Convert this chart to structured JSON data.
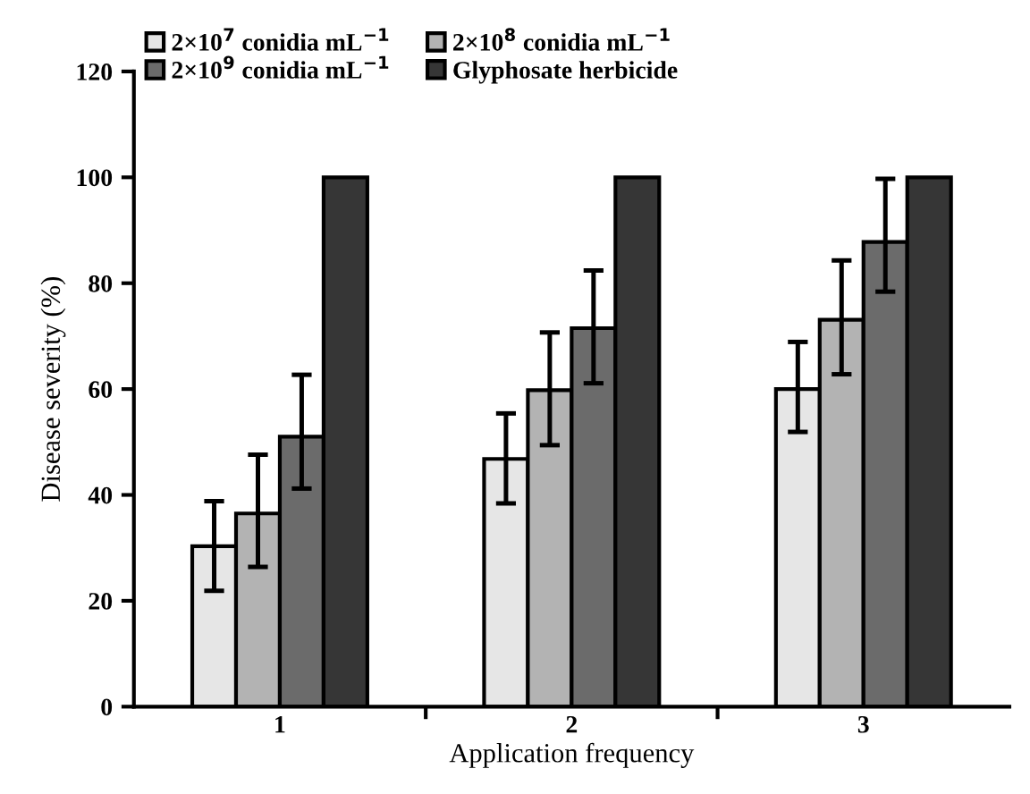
{
  "chart_data": {
    "type": "bar",
    "xlabel": "Application frequency",
    "ylabel": "Disease severity (%)",
    "categories": [
      "1",
      "2",
      "3"
    ],
    "series": [
      {
        "name": "2×10$^{7}$ conidia mL$^{−1}$",
        "color": "#e6e6e6",
        "values": [
          30.3,
          46.8,
          60.0
        ],
        "errors": [
          [
            21.9,
            38.8
          ],
          [
            38.4,
            55.4
          ],
          [
            51.9,
            68.9
          ]
        ]
      },
      {
        "name": "2×10$^{8}$ conidia mL$^{−1}$",
        "color": "#b3b3b3",
        "values": [
          36.5,
          59.8,
          73.1
        ],
        "errors": [
          [
            26.4,
            47.6
          ],
          [
            49.4,
            70.7
          ],
          [
            62.8,
            84.3
          ]
        ]
      },
      {
        "name": "2×10$^{9}$ conidia mL$^{−1}$",
        "color": "#6b6b6b",
        "values": [
          51.0,
          71.5,
          87.8
        ],
        "errors": [
          [
            41.2,
            62.7
          ],
          [
            61.1,
            82.4
          ],
          [
            78.4,
            99.7
          ]
        ]
      },
      {
        "name": "Glyphosate herbicide",
        "color": "#363636",
        "values": [
          100,
          100,
          100
        ]
      }
    ],
    "ylim": [
      0,
      120
    ],
    "yticks": [
      0,
      20,
      40,
      60,
      80,
      100,
      120
    ],
    "grid": false,
    "legend": "top left"
  }
}
